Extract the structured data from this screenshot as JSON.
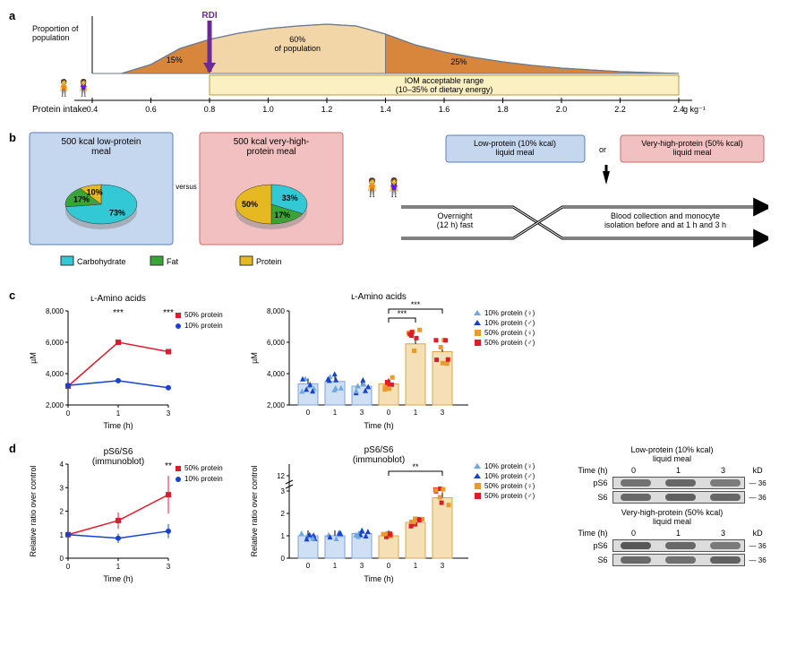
{
  "panelA": {
    "label": "a",
    "yAxisLabel": "Proportion of\npopulation",
    "rdiLabel": "RDI",
    "rdiX": 0.8,
    "segments": [
      "15%",
      "60%\nof population",
      "25%"
    ],
    "iomText": "IOM acceptable range\n(10–35% of dietary energy)",
    "xAxisLabel": "Protein intake",
    "xTicks": [
      "0.4",
      "0.6",
      "0.8",
      "1.0",
      "1.2",
      "1.4",
      "1.6",
      "1.8",
      "2.0",
      "2.2",
      "2.4"
    ],
    "xUnit": "g kg⁻¹ d⁻¹",
    "dist_xmin": 0.4,
    "dist_xmax": 2.4,
    "curve_pts": [
      [
        0.5,
        0
      ],
      [
        0.6,
        10
      ],
      [
        0.7,
        28
      ],
      [
        0.8,
        38
      ],
      [
        0.9,
        45
      ],
      [
        1.0,
        50
      ],
      [
        1.1,
        53
      ],
      [
        1.2,
        55
      ],
      [
        1.3,
        53
      ],
      [
        1.4,
        44
      ],
      [
        1.5,
        32
      ],
      [
        1.6,
        24
      ],
      [
        1.7,
        18
      ],
      [
        1.8,
        13
      ],
      [
        1.9,
        9
      ],
      [
        2.0,
        6
      ],
      [
        2.1,
        4
      ],
      [
        2.2,
        2
      ],
      [
        2.3,
        1
      ],
      [
        2.4,
        0
      ]
    ],
    "seg1_end": 0.8,
    "seg2_end": 1.4,
    "colors": {
      "seg_outer": "#d9863d",
      "seg_mid": "#f2d6a8",
      "iom_bg": "#faf0c2",
      "iom_border": "#b89b3a",
      "curve": "#6b7a8f",
      "rdi": "#6a2c91"
    }
  },
  "panelB": {
    "label": "b",
    "versus": "versus",
    "boxes": [
      {
        "title": "500 kcal low-protein\nmeal",
        "bg": "#c4d7ef",
        "border": "#5c7fb3",
        "pie": [
          {
            "label": "73%",
            "value": 73,
            "color": "#32c8d4"
          },
          {
            "label": "17%",
            "value": 17,
            "color": "#3aa537"
          },
          {
            "label": "10%",
            "value": 10,
            "color": "#e6b822"
          }
        ]
      },
      {
        "title": "500 kcal very-high-\nprotein meal",
        "bg": "#f2c0c0",
        "border": "#c76b6b",
        "pie": [
          {
            "label": "33%",
            "value": 33,
            "color": "#32c8d4"
          },
          {
            "label": "17%",
            "value": 17,
            "color": "#3aa537"
          },
          {
            "label": "50%",
            "value": 50,
            "color": "#e6b822"
          }
        ]
      }
    ],
    "legend": [
      {
        "name": "Carbohydrate",
        "color": "#32c8d4"
      },
      {
        "name": "Fat",
        "color": "#3aa537"
      },
      {
        "name": "Protein",
        "color": "#e6b822"
      }
    ],
    "flow": {
      "lowBox": {
        "text": "Low-protein (10% kcal)\nliquid meal",
        "bg": "#c4d7ef",
        "border": "#5c7fb3"
      },
      "highBox": {
        "text": "Very-high-protein (50% kcal)\nliquid meal",
        "bg": "#f2c0c0",
        "border": "#c76b6b"
      },
      "orLabel": "or",
      "fastText": "Overnight\n(12 h) fast",
      "collectText": "Blood collection and monocyte\nisolation before and at 1 h and 3 h"
    }
  },
  "panelC": {
    "label": "c",
    "line": {
      "title": "ʟ-Amino acids",
      "yLabel": "µM",
      "yTicks": [
        2000,
        4000,
        6000,
        8000
      ],
      "xTicks": [
        0,
        1,
        3
      ],
      "xLabel": "Time (h)",
      "sig": [
        {
          "x": 1,
          "text": "***"
        },
        {
          "x": 3,
          "text": "***"
        }
      ],
      "legend": [
        {
          "name": "50% protein",
          "color": "#e11b2c",
          "marker": "square"
        },
        {
          "name": "10% protein",
          "color": "#1742d1",
          "marker": "circle"
        }
      ],
      "series": {
        "red": [
          [
            0,
            3200
          ],
          [
            1,
            6000
          ],
          [
            3,
            5400
          ]
        ],
        "blue": [
          [
            0,
            3250
          ],
          [
            1,
            3550
          ],
          [
            3,
            3100
          ]
        ]
      }
    },
    "bar": {
      "title": "ʟ-Amino acids",
      "yLabel": "µM",
      "yTicks": [
        2000,
        4000,
        6000,
        8000
      ],
      "groups": [
        "0",
        "1",
        "3",
        "0",
        "1",
        "3"
      ],
      "xLabel": "Time (h)",
      "colors": {
        "blue_fill": "#cfe0f5",
        "blue_edge": "#7fa3d6",
        "orange_fill": "#f5dfb5",
        "orange_edge": "#d9a84d"
      },
      "means": [
        3350,
        3500,
        3200,
        3350,
        5900,
        5400
      ],
      "sig": [
        {
          "from": 3,
          "to": 4,
          "text": "***"
        },
        {
          "from": 3,
          "to": 5,
          "text": "***",
          "top": true
        }
      ],
      "legend": [
        {
          "name": "10% protein (♀)",
          "shape": "triangle",
          "fill": "#6da8e3"
        },
        {
          "name": "10% protein (♂)",
          "shape": "triangle",
          "fill": "#1742d1"
        },
        {
          "name": "50% protein (♀)",
          "shape": "square",
          "fill": "#e89b2c"
        },
        {
          "name": "50% protein (♂)",
          "shape": "square",
          "fill": "#e11b2c"
        }
      ]
    }
  },
  "panelD": {
    "label": "d",
    "line": {
      "title": "pS6/S6\n(immunoblot)",
      "yLabel": "Relative ratio over control",
      "yTicks": [
        0,
        1,
        2,
        3,
        4
      ],
      "xTicks": [
        0,
        1,
        3
      ],
      "xLabel": "Time (h)",
      "sig": [
        {
          "x": 3,
          "text": "**"
        }
      ],
      "legend": [
        {
          "name": "50% protein",
          "color": "#e11b2c",
          "marker": "square"
        },
        {
          "name": "10% protein",
          "color": "#1742d1",
          "marker": "circle"
        }
      ],
      "series": {
        "red": [
          [
            0,
            1.0
          ],
          [
            1,
            1.6
          ],
          [
            3,
            2.7
          ]
        ],
        "reder": [
          [
            0,
            0
          ],
          [
            1,
            0.35
          ],
          [
            3,
            0.8
          ]
        ],
        "blue": [
          [
            0,
            1.0
          ],
          [
            1,
            0.85
          ],
          [
            3,
            1.15
          ]
        ],
        "bluer": [
          [
            0,
            0
          ],
          [
            1,
            0.2
          ],
          [
            3,
            0.3
          ]
        ]
      }
    },
    "bar": {
      "title": "pS6/S6\n(immunoblot)",
      "yLabel": "Relative ratio over control",
      "yTicks": [
        0,
        1,
        2,
        3,
        12
      ],
      "xLabel": "Time (h)",
      "groups": [
        "0",
        "1",
        "3",
        "0",
        "1",
        "3"
      ],
      "means": [
        1.0,
        1.0,
        1.1,
        1.0,
        1.6,
        2.7
      ],
      "sig": [
        {
          "from": 3,
          "to": 5,
          "text": "**"
        }
      ],
      "legend": [
        {
          "name": "10% protein (♀)",
          "shape": "triangle",
          "fill": "#6da8e3"
        },
        {
          "name": "10% protein (♂)",
          "shape": "triangle",
          "fill": "#1742d1"
        },
        {
          "name": "50% protein (♀)",
          "shape": "square",
          "fill": "#e89b2c"
        },
        {
          "name": "50% protein (♂)",
          "shape": "square",
          "fill": "#e11b2c"
        }
      ]
    },
    "blots": {
      "top": {
        "title": "Low-protein (10% kcal)\nliquid meal",
        "times": [
          "0",
          "1",
          "3"
        ],
        "rows": [
          "pS6",
          "S6"
        ],
        "kd": "36",
        "kdLabel": "kD"
      },
      "bottom": {
        "title": "Very-high-protein (50% kcal)\nliquid meal",
        "times": [
          "0",
          "1",
          "3"
        ],
        "rows": [
          "pS6",
          "S6"
        ],
        "kd": "36",
        "kdLabel": "kD"
      },
      "timeLabel": "Time (h)"
    }
  }
}
